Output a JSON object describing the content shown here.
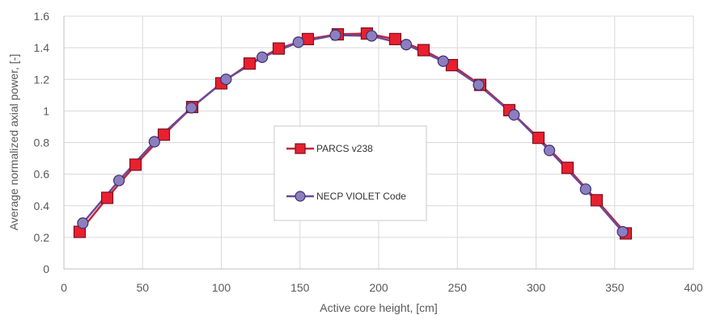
{
  "chart_data": {
    "type": "line",
    "xlabel": "Active core height, [cm]",
    "ylabel": "Average normalized axial power, [-]",
    "xlim": [
      0,
      400
    ],
    "ylim": [
      0,
      1.6
    ],
    "x_ticks": [
      0,
      50,
      100,
      150,
      200,
      250,
      300,
      350,
      400
    ],
    "y_ticks": [
      0,
      0.2,
      0.4,
      0.6,
      0.8,
      1,
      1.2,
      1.4,
      1.6
    ],
    "x_tick_labels": [
      "0",
      "50",
      "100",
      "150",
      "200",
      "250",
      "300",
      "350",
      "400"
    ],
    "y_tick_labels": [
      "0",
      "0.2",
      "0.4",
      "0.6",
      "0.8",
      "1",
      "1.2",
      "1.4",
      "1.6"
    ],
    "grid": true,
    "legend_position": "center",
    "series": [
      {
        "name": "PARCS v238",
        "marker": "square",
        "color": "#E8202F",
        "edge_color": "#7A1020",
        "line_color": "#C0263A",
        "x": [
          10,
          27.5,
          45.5,
          63.5,
          81.5,
          100,
          118,
          136.5,
          155,
          174,
          192.5,
          210.5,
          228.5,
          246.5,
          264.5,
          283,
          301.5,
          320,
          338.5,
          357
        ],
        "y": [
          0.235,
          0.45,
          0.66,
          0.85,
          1.025,
          1.175,
          1.3,
          1.395,
          1.455,
          1.485,
          1.49,
          1.455,
          1.385,
          1.29,
          1.165,
          1.005,
          0.83,
          0.64,
          0.435,
          0.225
        ]
      },
      {
        "name": "NECP VIOLET Code",
        "marker": "circle",
        "color": "#8B7FBF",
        "edge_color": "#3F2F6F",
        "line_color": "#6A4A9A",
        "x": [
          12,
          35,
          57.5,
          81,
          103,
          126,
          149,
          172.5,
          195.5,
          217.5,
          241,
          263.5,
          286,
          308.5,
          331.5,
          355
        ],
        "y": [
          0.29,
          0.56,
          0.805,
          1.02,
          1.2,
          1.34,
          1.435,
          1.48,
          1.475,
          1.42,
          1.315,
          1.165,
          0.975,
          0.75,
          0.505,
          0.235
        ]
      }
    ]
  }
}
